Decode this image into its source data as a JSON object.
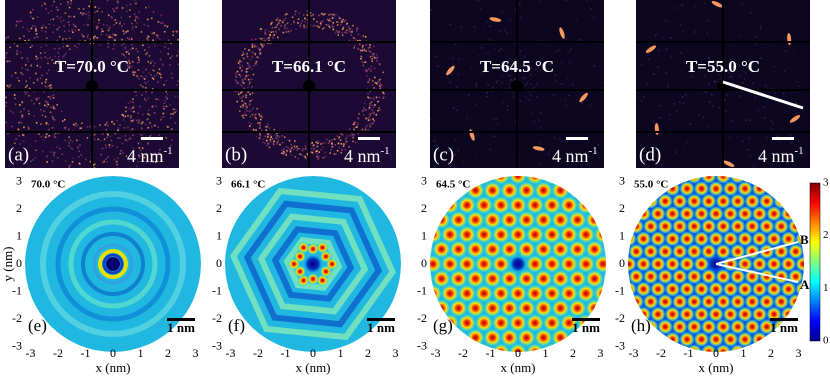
{
  "panels_top": [
    {
      "label": "(a)",
      "temperature": "T=70.0 °C",
      "scale": "4 nm",
      "scale_exp": "-1"
    },
    {
      "label": "(b)",
      "temperature": "T=66.1 °C",
      "scale": "4 nm",
      "scale_exp": "-1"
    },
    {
      "label": "(c)",
      "temperature": "T=64.5 °C",
      "scale": "4 nm",
      "scale_exp": "-1"
    },
    {
      "label": "(d)",
      "temperature": "T=55.0 °C",
      "scale": "4 nm",
      "scale_exp": "-1"
    }
  ],
  "panels_bottom": [
    {
      "label": "(e)",
      "temperature": "70.0 °C",
      "scale": "1 nm"
    },
    {
      "label": "(f)",
      "temperature": "66.1 °C",
      "scale": "1 nm"
    },
    {
      "label": "(g)",
      "temperature": "64.5 °C",
      "scale": "1 nm"
    },
    {
      "label": "(h)",
      "temperature": "55.0 °C",
      "scale": "1 nm"
    }
  ],
  "axes": {
    "ticks": [
      -3,
      -2,
      -1,
      0,
      1,
      2,
      3
    ],
    "x_label": "x (nm)",
    "y_label": "y (nm)"
  },
  "colorbar": {
    "ticks": [
      0,
      1,
      2,
      3
    ]
  },
  "markers": {
    "a": "A",
    "b": "B"
  }
}
